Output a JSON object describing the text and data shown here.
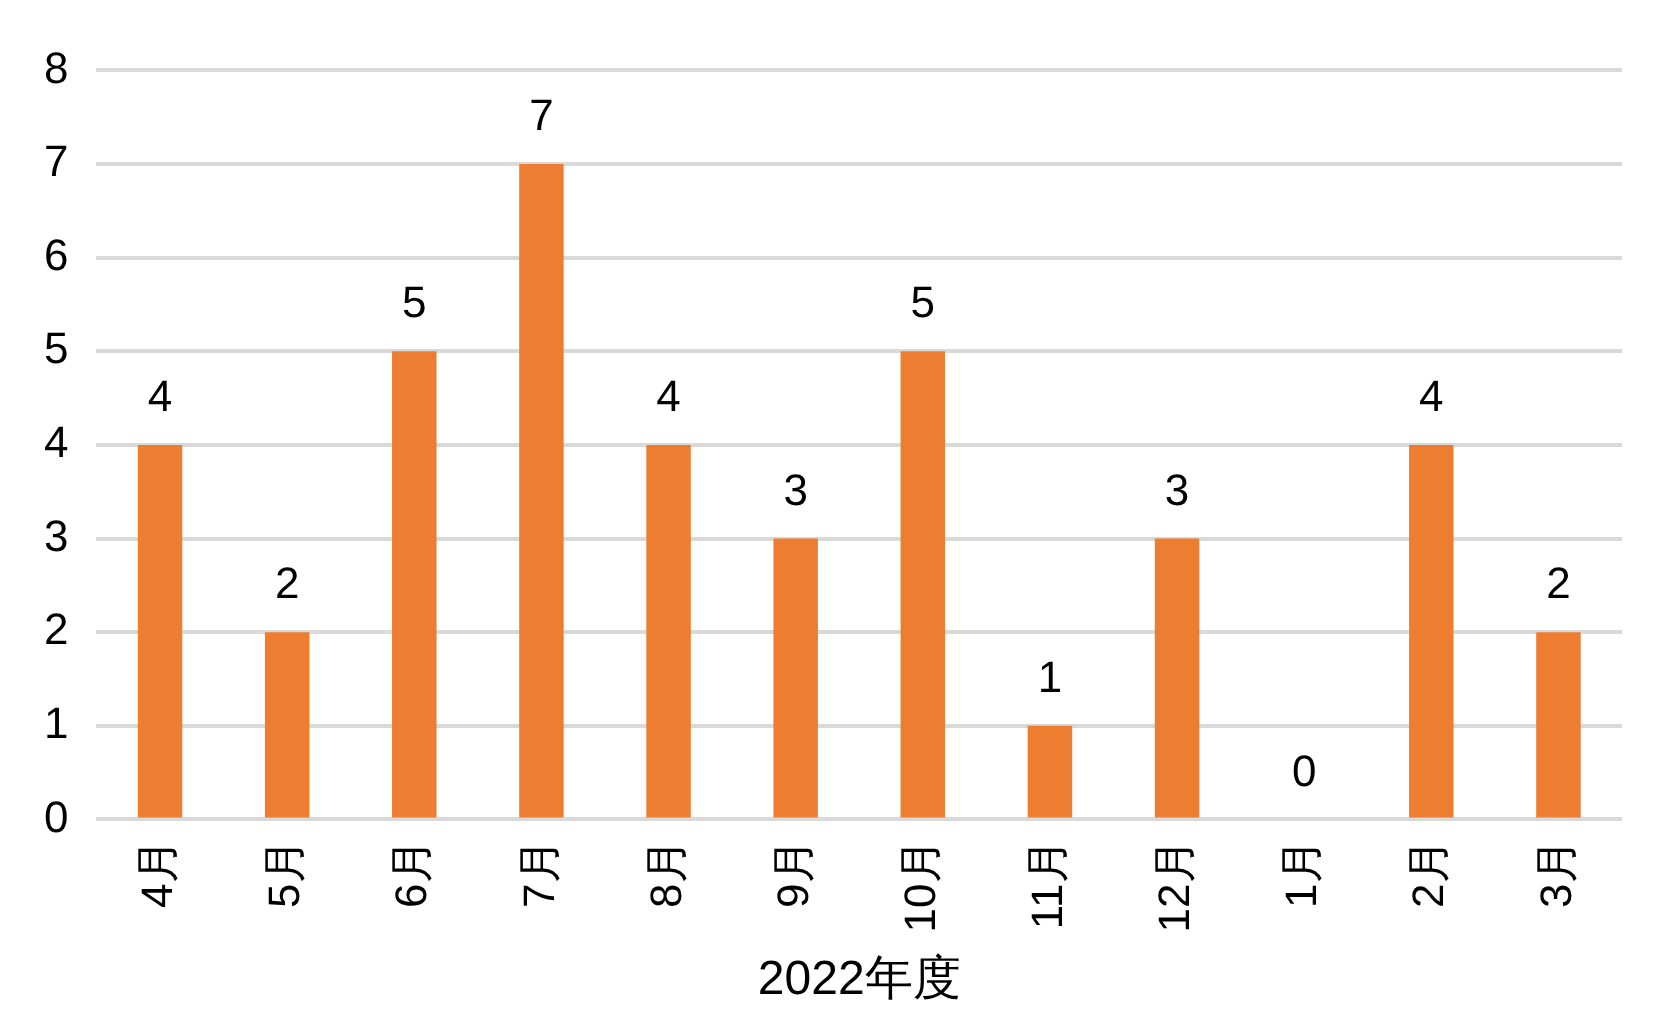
{
  "chart_data": {
    "type": "bar",
    "xlabel": "2022年度",
    "categories": [
      "4月",
      "5月",
      "6月",
      "7月",
      "8月",
      "9月",
      "10月",
      "11月",
      "12月",
      "1月",
      "2月",
      "3月"
    ],
    "values": [
      4,
      2,
      5,
      7,
      4,
      3,
      5,
      1,
      3,
      0,
      4,
      2
    ],
    "color": "#ed7d31",
    "ylim": [
      0,
      8
    ],
    "yticks": [
      0,
      1,
      2,
      3,
      4,
      5,
      6,
      7,
      8
    ],
    "grid": "y",
    "data_labels": true,
    "legend": false
  }
}
